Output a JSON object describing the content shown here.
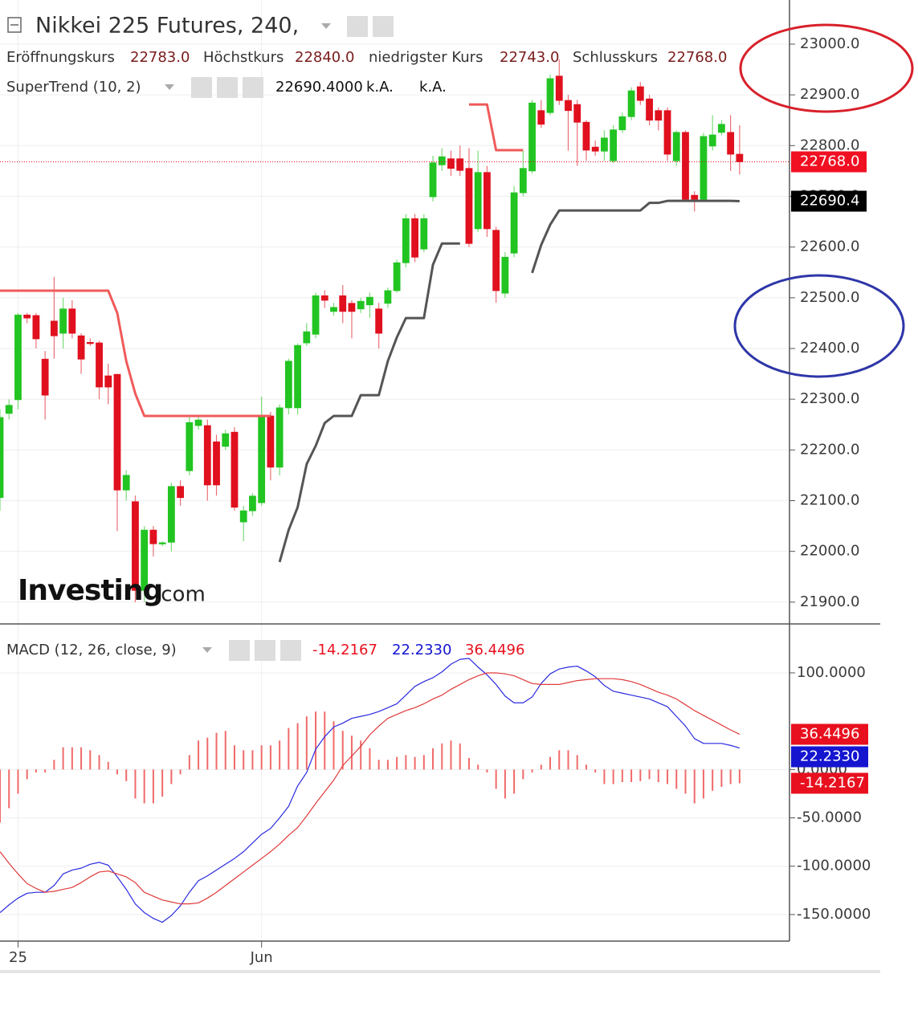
{
  "chart_data": [
    {
      "type": "candlestick",
      "title": "Nikkei 225 Futures, 240,",
      "categories": [
        null,
        null,
        "25",
        null,
        null,
        null,
        null,
        null,
        null,
        null,
        null,
        null,
        null,
        null,
        null,
        null,
        null,
        null,
        null,
        null,
        null,
        null,
        null,
        null,
        null,
        null,
        null,
        null,
        null,
        "Jun",
        null,
        null,
        null,
        null,
        null,
        null,
        null,
        null,
        null,
        null,
        null,
        null,
        null,
        null,
        null,
        null,
        null,
        null,
        null,
        null,
        null,
        null,
        null,
        null,
        null,
        null,
        null,
        null,
        null,
        null,
        null,
        null,
        null,
        null,
        null,
        null,
        null,
        null,
        null,
        null,
        null,
        null,
        null,
        null,
        null,
        null,
        null,
        null,
        null,
        null,
        null,
        null,
        null
      ],
      "open": [
        22106,
        22272,
        22299,
        22466,
        22465,
        22379,
        22454,
        22430,
        22478,
        22425,
        22412,
        22411,
        22346,
        22349,
        22121,
        22098,
        21923,
        22042,
        22015,
        22018,
        22128,
        22159,
        22248,
        22248,
        22216,
        22207,
        22235,
        22058,
        22080,
        22096,
        22267,
        22166,
        22283,
        22283,
        22411,
        22428,
        22504,
        22473,
        22504,
        22489,
        22478,
        22486,
        22478,
        22489,
        22514,
        22569,
        22656,
        22596,
        22699,
        22762,
        22774,
        22774,
        22755,
        22636,
        22747,
        22633,
        22509,
        22588,
        22707,
        22750,
        22869,
        22865,
        22937,
        22889,
        22881,
        22846,
        22797,
        22789,
        22770,
        22831,
        22857,
        22916,
        22892,
        22869,
        22869,
        22770,
        22826,
        22702,
        22694,
        22799,
        22826,
        22826,
        22783
      ],
      "high": [
        22280,
        22300,
        22470,
        22470,
        22470,
        22395,
        22541,
        22500,
        22495,
        22430,
        22420,
        22415,
        22370,
        22350,
        22160,
        22110,
        22050,
        22050,
        22020,
        22135,
        22140,
        22265,
        22265,
        22260,
        22230,
        22240,
        22245,
        22090,
        22115,
        22305,
        22275,
        22290,
        22380,
        22410,
        22450,
        22510,
        22515,
        22490,
        22525,
        22495,
        22500,
        22510,
        22490,
        22520,
        22575,
        22665,
        22665,
        22665,
        22780,
        22795,
        22790,
        22800,
        22795,
        22790,
        22760,
        22640,
        22590,
        22720,
        22790,
        22890,
        22890,
        22940,
        22970,
        22900,
        22890,
        22850,
        22810,
        22830,
        22840,
        22865,
        22915,
        22925,
        22900,
        22875,
        22875,
        22830,
        22830,
        22710,
        22825,
        22860,
        22850,
        22860,
        22840
      ],
      "low": [
        22080,
        22260,
        22280,
        22450,
        22400,
        22260,
        22380,
        22400,
        22420,
        22350,
        22405,
        22300,
        22290,
        22040,
        22100,
        21900,
        21900,
        21990,
        22010,
        22000,
        22090,
        22150,
        22240,
        22100,
        22110,
        22200,
        22080,
        22020,
        22070,
        22090,
        22140,
        22150,
        22270,
        22270,
        22405,
        22420,
        22480,
        22465,
        22450,
        22420,
        22470,
        22460,
        22400,
        22480,
        22510,
        22560,
        22570,
        22590,
        22690,
        22750,
        22740,
        22740,
        22600,
        22630,
        22620,
        22490,
        22500,
        22580,
        22700,
        22745,
        22835,
        22860,
        22880,
        22790,
        22760,
        22770,
        22780,
        22770,
        22765,
        22825,
        22850,
        22880,
        22840,
        22830,
        22770,
        22760,
        22690,
        22670,
        22690,
        22790,
        22820,
        22750,
        22743
      ],
      "close": [
        22264,
        22288,
        22466,
        22460,
        22419,
        22308,
        22425,
        22478,
        22430,
        22379,
        22410,
        22324,
        22324,
        22121,
        22150,
        21923,
        22042,
        22015,
        22017,
        22128,
        22106,
        22254,
        22259,
        22131,
        22131,
        22232,
        22087,
        22080,
        22109,
        22264,
        22166,
        22283,
        22375,
        22406,
        22433,
        22504,
        22495,
        22481,
        22473,
        22473,
        22493,
        22501,
        22430,
        22514,
        22569,
        22656,
        22580,
        22656,
        22766,
        22778,
        22755,
        22751,
        22607,
        22747,
        22636,
        22514,
        22580,
        22707,
        22755,
        22884,
        22842,
        22932,
        22889,
        22869,
        22846,
        22791,
        22789,
        22815,
        22831,
        22857,
        22908,
        22889,
        22850,
        22850,
        22783,
        22826,
        22694,
        22694,
        22818,
        22821,
        22842,
        22783,
        22768
      ],
      "up_color": "#22c422",
      "down_color": "#e0101e",
      "ohlc_labels": [
        "Eröffnungskurs",
        "Höchstkurs",
        "niedrigster Kurs",
        "Schlusskurs"
      ],
      "ohlc_values": [
        22783,
        22840,
        22743,
        22768
      ],
      "ohlc_value_labels": [
        "22783.0",
        "22840.0",
        "22743.0",
        "22768.0"
      ],
      "last_price_label": "22768.0",
      "indicator": {
        "name": "SuperTrend (10, 2)",
        "value": 22690.4,
        "value_label": "22690.4000",
        "tag_label": "22690.4",
        "na_labels": [
          "k.A.",
          "k.A."
        ],
        "series": [
          {
            "color": "#f05a5a",
            "values": [
              22514,
              22514,
              22514,
              22514,
              22514,
              22514,
              22514,
              22514,
              22514,
              22514,
              22514,
              22514,
              22514,
              22470,
              22375,
              22311,
              22267,
              22267,
              22267,
              22267,
              22267,
              22267,
              22267,
              22267,
              22267,
              22267,
              22267,
              22267,
              22267,
              22267,
              22267,
              null,
              null,
              null,
              null,
              null,
              null,
              null,
              null,
              null,
              null,
              null,
              null,
              null,
              null,
              null,
              null,
              null,
              null,
              null,
              null,
              null,
              22881,
              22881,
              22881,
              22791,
              22791,
              22791,
              22791,
              null,
              null,
              null,
              null,
              null,
              null,
              null,
              null,
              null,
              null,
              null,
              null,
              null,
              null,
              null,
              null,
              null,
              null,
              null,
              null,
              null,
              null,
              null,
              null
            ]
          },
          {
            "color": "#555555",
            "values": [
              null,
              null,
              null,
              null,
              null,
              null,
              null,
              null,
              null,
              null,
              null,
              null,
              null,
              null,
              null,
              null,
              null,
              null,
              null,
              null,
              null,
              null,
              null,
              null,
              null,
              null,
              null,
              null,
              null,
              null,
              null,
              21979,
              22042,
              22087,
              22172,
              22208,
              22253,
              22267,
              22267,
              22267,
              22308,
              22308,
              22308,
              22375,
              22422,
              22460,
              22460,
              22460,
              22565,
              22607,
              22607,
              22607,
              null,
              null,
              null,
              null,
              null,
              null,
              null,
              22549,
              22604,
              22644,
              22672,
              22672,
              22672,
              22672,
              22672,
              22672,
              22672,
              22672,
              22672,
              22672,
              22687,
              22687,
              22691,
              22691,
              22691,
              22691,
              22691,
              22691,
              22691,
              22691,
              22690.4
            ]
          }
        ]
      },
      "logo": [
        "Investing",
        ".com"
      ],
      "ylim": [
        21857,
        23087
      ],
      "yticks": [
        {
          "value": 21900,
          "label": "21900.0"
        },
        {
          "value": 22000,
          "label": "22000.0"
        },
        {
          "value": 22100,
          "label": "22100.0"
        },
        {
          "value": 22200,
          "label": "22200.0"
        },
        {
          "value": 22300,
          "label": "22300.0"
        },
        {
          "value": 22400,
          "label": "22400.0"
        },
        {
          "value": 22500,
          "label": "22500.0"
        },
        {
          "value": 22600,
          "label": "22600.0"
        },
        {
          "value": 22700,
          "label": "22700.0"
        },
        {
          "value": 22800,
          "label": "22800.0"
        },
        {
          "value": 22900,
          "label": "22900.0"
        },
        {
          "value": 23000,
          "label": "23000.0"
        }
      ],
      "grid": true
    },
    {
      "type": "macd",
      "title": "MACD (12, 26, close, 9)",
      "histogram": {
        "color": "#f06a6a",
        "values": [
          -55,
          -40,
          -25,
          -10,
          -3,
          -3,
          10,
          23,
          23,
          23,
          20,
          15,
          8,
          -5,
          -12,
          -30,
          -35,
          -35,
          -28,
          -15,
          -5,
          15,
          30,
          33,
          38,
          40,
          25,
          20,
          20,
          25,
          25,
          30,
          43,
          48,
          55,
          60,
          60,
          50,
          40,
          35,
          30,
          22,
          10,
          10,
          13,
          15,
          13,
          15,
          22,
          27,
          30,
          27,
          12,
          5,
          -3,
          -20,
          -30,
          -25,
          -10,
          -3,
          5,
          13,
          20,
          20,
          15,
          5,
          -3,
          -15,
          -15,
          -13,
          -13,
          -12,
          -10,
          -13,
          -15,
          -20,
          -25,
          -35,
          -30,
          -22,
          -18,
          -15,
          -14.2167
        ]
      },
      "series": [
        {
          "color": "#2a2ae0",
          "values": [
            -148,
            -140,
            -133,
            -128,
            -127,
            -127,
            -120,
            -108,
            -104,
            -102,
            -98,
            -96,
            -99,
            -111,
            -124,
            -139,
            -148,
            -154,
            -158,
            -151,
            -141,
            -127,
            -115,
            -110,
            -104,
            -98,
            -92,
            -85,
            -76,
            -67,
            -61,
            -50,
            -38,
            -17,
            -3,
            21,
            34,
            44,
            48,
            53,
            55,
            57,
            60,
            64,
            68,
            77,
            86,
            91,
            95,
            101,
            109,
            114,
            115,
            106,
            98,
            88,
            76,
            69,
            69,
            75,
            89,
            99,
            104,
            106,
            107,
            102,
            96,
            87,
            81,
            79,
            77,
            75,
            73,
            69,
            65,
            55,
            45,
            32,
            27,
            27,
            27,
            25,
            22.233
          ]
        },
        {
          "color": "#e03a3a",
          "values": [
            -85,
            -97,
            -108,
            -118,
            -123,
            -127,
            -126,
            -124,
            -122,
            -117,
            -111,
            -106,
            -105,
            -108,
            -111,
            -117,
            -127,
            -131,
            -135,
            -137,
            -139,
            -139,
            -138,
            -133,
            -127,
            -120,
            -113,
            -106,
            -99,
            -92,
            -85,
            -77,
            -68,
            -60,
            -48,
            -35,
            -23,
            -11,
            4,
            14,
            24,
            36,
            45,
            53,
            57,
            61,
            64,
            68,
            73,
            77,
            83,
            88,
            93,
            97,
            100,
            100,
            99,
            97,
            93,
            89,
            88,
            88,
            88,
            90,
            92,
            93,
            94,
            94,
            94,
            93,
            91,
            88,
            84,
            80,
            77,
            73,
            67,
            61,
            56,
            51,
            46,
            41,
            36.4496
          ]
        }
      ],
      "legend_values": [
        -14.2167,
        22.233,
        36.4496
      ],
      "legend_value_labels": [
        "-14.2167",
        "22.2330",
        "36.4496"
      ],
      "legend_colors": [
        "#e8101e",
        "#1515d0",
        "#e8101e"
      ],
      "ylim": [
        -177.5,
        144
      ],
      "yticks": [
        {
          "value": -150,
          "label": "-150.0000"
        },
        {
          "value": -100,
          "label": "-100.0000"
        },
        {
          "value": -50,
          "label": "-50.0000"
        },
        {
          "value": 0,
          "label": "0.0000"
        },
        {
          "value": 100,
          "label": "100.0000"
        }
      ],
      "grid": true
    }
  ]
}
